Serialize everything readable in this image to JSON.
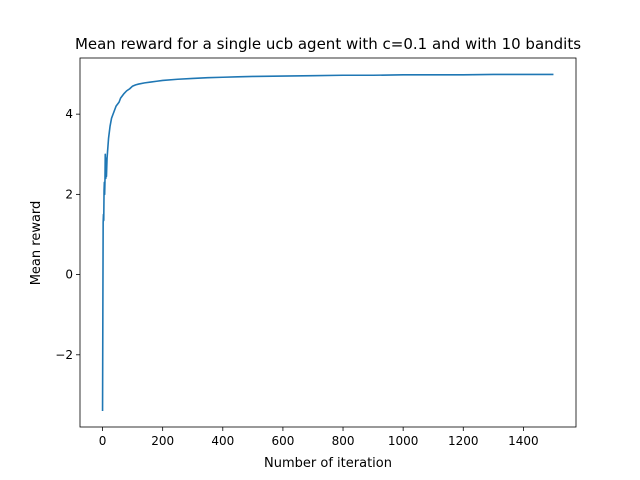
{
  "chart_data": {
    "type": "line",
    "title": "Mean reward for a single ucb agent with c=0.1 and with 10 bandits",
    "xlabel": "Number of iteration",
    "ylabel": "Mean reward",
    "xlim": [
      -75,
      1575
    ],
    "ylim": [
      -3.8,
      5.4
    ],
    "xticks": [
      0,
      200,
      400,
      600,
      800,
      1000,
      1200,
      1400
    ],
    "yticks": [
      -2,
      0,
      2,
      4
    ],
    "grid": false,
    "legend": "none",
    "series": [
      {
        "color": "#1f77b4",
        "x": [
          0,
          1,
          2,
          3,
          4,
          5,
          6,
          7,
          8,
          9,
          10,
          11,
          12,
          13,
          15,
          18,
          20,
          25,
          30,
          35,
          40,
          45,
          50,
          55,
          60,
          70,
          80,
          90,
          100,
          110,
          120,
          140,
          160,
          180,
          200,
          250,
          300,
          350,
          400,
          450,
          500,
          600,
          700,
          800,
          900,
          1000,
          1100,
          1200,
          1300,
          1400,
          1500
        ],
        "y": [
          -3.4,
          -1.0,
          1.3,
          1.5,
          1.35,
          2.1,
          2.3,
          2.0,
          2.3,
          3.0,
          2.6,
          2.4,
          2.9,
          2.45,
          2.9,
          3.2,
          3.4,
          3.7,
          3.9,
          4.0,
          4.1,
          4.2,
          4.25,
          4.3,
          4.4,
          4.5,
          4.58,
          4.63,
          4.7,
          4.73,
          4.75,
          4.78,
          4.8,
          4.82,
          4.84,
          4.87,
          4.89,
          4.91,
          4.92,
          4.93,
          4.94,
          4.95,
          4.96,
          4.97,
          4.97,
          4.98,
          4.98,
          4.98,
          4.99,
          4.99,
          4.99
        ]
      }
    ]
  }
}
